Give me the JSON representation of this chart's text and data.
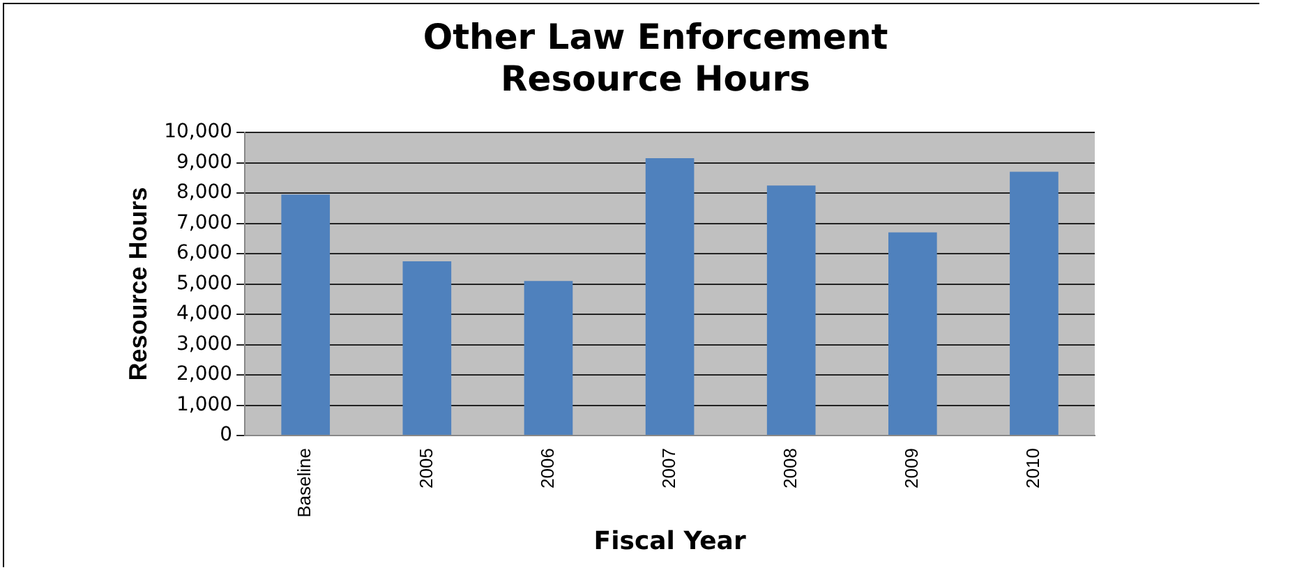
{
  "chart_data": {
    "type": "bar",
    "title": "Other Law Enforcement Resource Hours",
    "xlabel": "Fiscal Year",
    "ylabel": "Resource Hours",
    "categories": [
      "Baseline",
      "2005",
      "2006",
      "2007",
      "2008",
      "2009",
      "2010"
    ],
    "values": [
      7950,
      5750,
      5100,
      9150,
      8250,
      6700,
      8700
    ],
    "color": "#4f81bd",
    "ylim": [
      0,
      10000
    ],
    "yticks": [
      0,
      {
        "value": 1000,
        "label": "1,000"
      },
      {
        "value": 2000,
        "label": "2,000"
      },
      {
        "value": 3000,
        "label": "3,000"
      },
      {
        "value": 4000,
        "label": "4,000"
      },
      {
        "value": 5000,
        "label": "5,000"
      },
      {
        "value": 6000,
        "label": "6,000"
      },
      {
        "value": 7000,
        "label": "7,000"
      },
      {
        "value": 8000,
        "label": "8,000"
      },
      {
        "value": 9000,
        "label": "9,000"
      },
      {
        "value": 10000,
        "label": "10,000"
      }
    ],
    "grid": "y",
    "legend": false
  }
}
